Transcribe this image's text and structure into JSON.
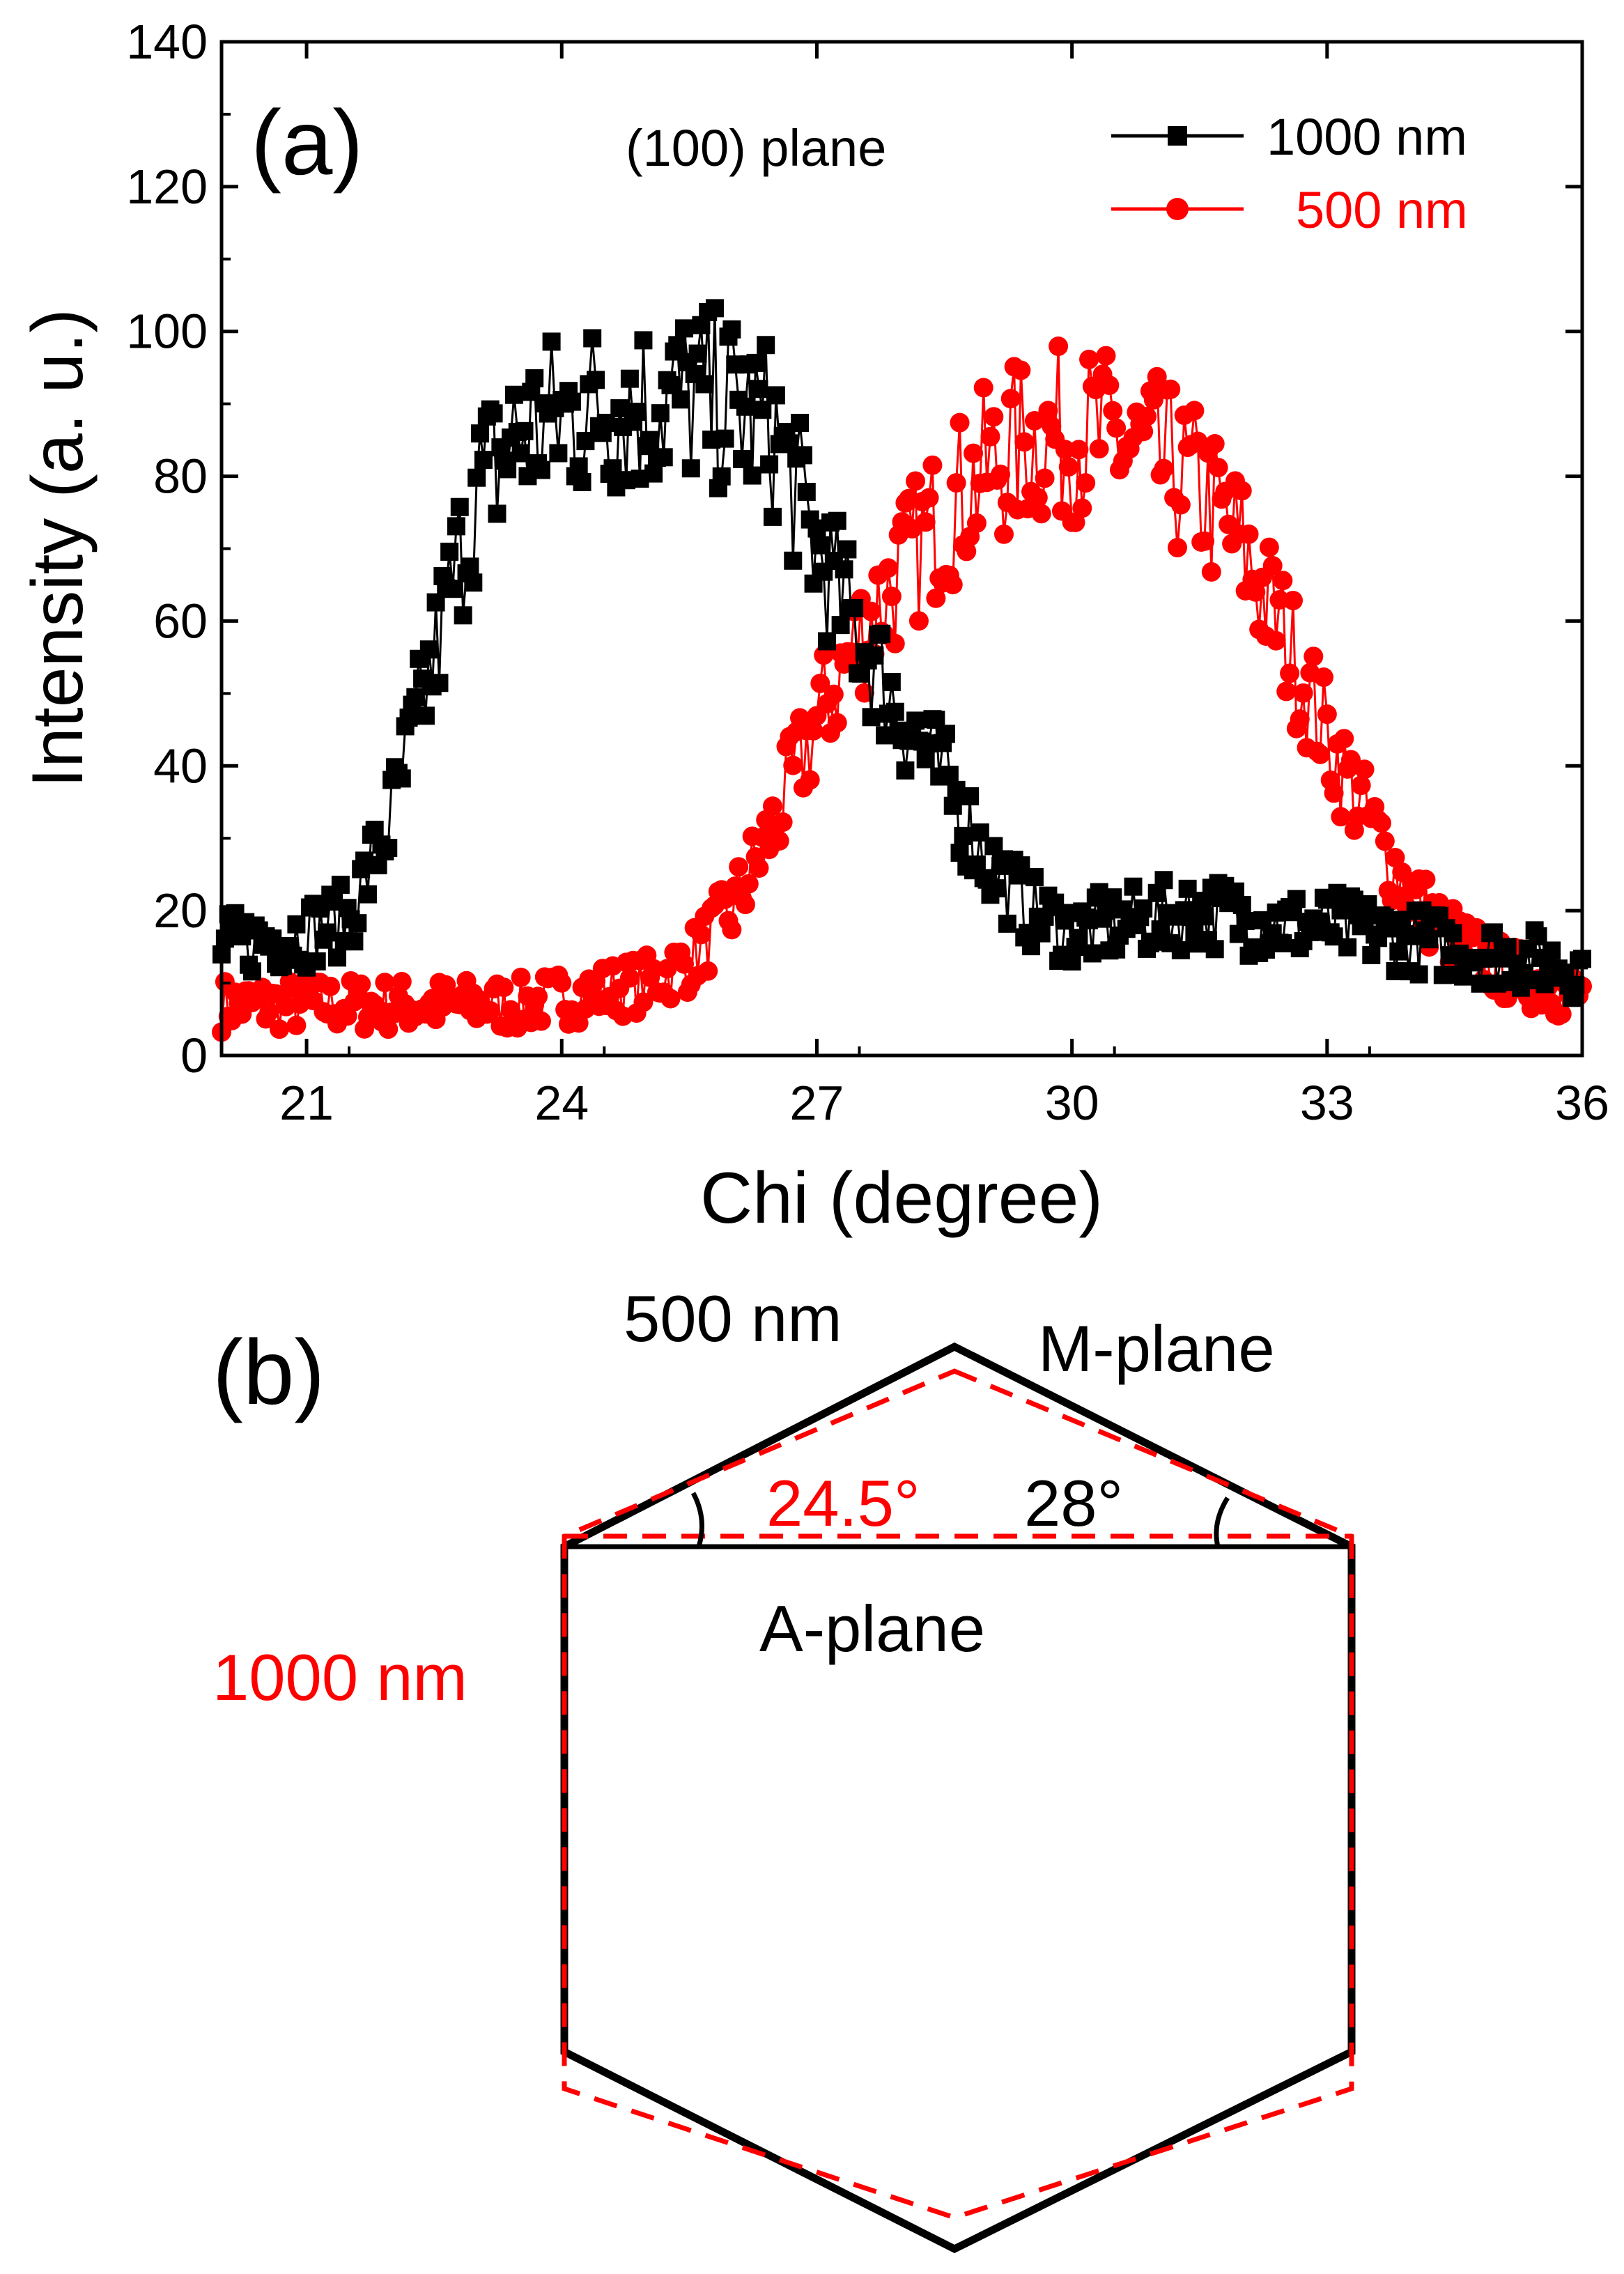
{
  "chart_data": [
    {
      "type": "scatter",
      "panel_label": "(a)",
      "annotation": "(100) plane",
      "xlabel": "Chi (degree)",
      "ylabel": "Intensity (a. u.)",
      "xlim": [
        20,
        36
      ],
      "ylim": [
        0,
        140
      ],
      "xticks": [
        21,
        24,
        27,
        30,
        33,
        36
      ],
      "yticks": [
        0,
        20,
        40,
        60,
        80,
        100,
        120,
        140
      ],
      "legend_position": "top-right",
      "series": [
        {
          "name": "1000 nm",
          "marker": "square",
          "color": "#000000",
          "x": [
            20.0,
            20.5,
            21.0,
            21.5,
            22.0,
            22.5,
            23.0,
            23.5,
            24.0,
            24.5,
            25.0,
            25.5,
            26.0,
            26.5,
            27.0,
            27.5,
            28.0,
            28.5,
            29.0,
            29.5,
            30.0,
            30.5,
            31.0,
            31.5,
            32.0,
            32.5,
            33.0,
            33.5,
            34.0,
            34.5,
            35.0,
            35.5,
            36.0
          ],
          "y": [
            15,
            16,
            17,
            19,
            33,
            55,
            78,
            86,
            88,
            90,
            90,
            91,
            90,
            86,
            70,
            58,
            47,
            38,
            27,
            20,
            17,
            18,
            19,
            20,
            19,
            18,
            18,
            17,
            16,
            15,
            14,
            13,
            12
          ]
        },
        {
          "name": "500 nm",
          "marker": "circle",
          "color": "#ff0000",
          "x": [
            20.0,
            20.5,
            21.0,
            21.5,
            22.0,
            22.5,
            23.0,
            23.5,
            24.0,
            24.5,
            25.0,
            25.5,
            26.0,
            26.5,
            27.0,
            27.5,
            28.0,
            28.5,
            29.0,
            29.5,
            30.0,
            30.5,
            31.0,
            31.5,
            32.0,
            32.5,
            33.0,
            33.5,
            34.0,
            34.5,
            35.0,
            35.5,
            36.0
          ],
          "y": [
            7,
            7,
            7,
            7,
            7,
            7,
            7,
            7,
            8,
            9,
            10,
            13,
            20,
            32,
            46,
            58,
            67,
            75,
            81,
            85,
            86,
            85,
            82,
            78,
            70,
            58,
            44,
            32,
            22,
            16,
            12,
            10,
            8
          ]
        }
      ]
    },
    {
      "type": "diagram",
      "panel_label": "(b)",
      "labels": {
        "top_left": "500 nm",
        "top_right": "M-plane",
        "angle_red": "24.5°",
        "angle_black": "28°",
        "inner": "A-plane",
        "left_red": "1000 nm"
      },
      "colors": {
        "solid": "#000000",
        "dashed": "#ff0000"
      }
    }
  ]
}
